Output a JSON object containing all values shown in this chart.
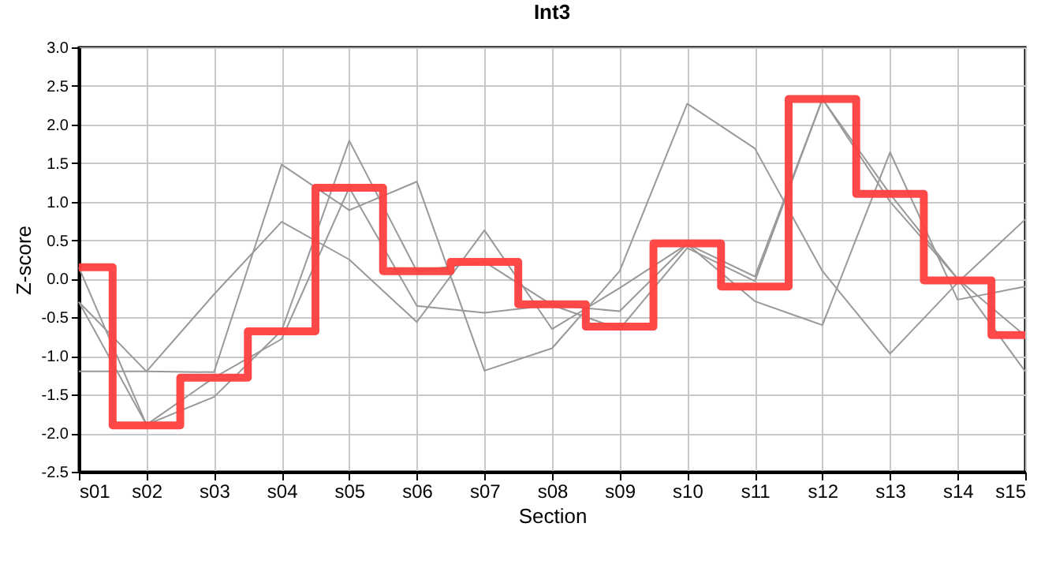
{
  "chart_data": {
    "type": "line",
    "title": "Int3",
    "xlabel": "Section",
    "ylabel": "Z-score",
    "categories": [
      "s01",
      "s02",
      "s03",
      "s04",
      "s05",
      "s06",
      "s07",
      "s08",
      "s09",
      "s10",
      "s11",
      "s12",
      "s13",
      "s14",
      "s15"
    ],
    "ylim": [
      -2.5,
      3.0
    ],
    "yticks": [
      {
        "value": -2.5,
        "label": "-2.5"
      },
      {
        "value": -2,
        "label": "-2.0"
      },
      {
        "value": -1.5,
        "label": "-1.5"
      },
      {
        "value": -1,
        "label": "-1.0"
      },
      {
        "value": -0.5,
        "label": "-0.5"
      },
      {
        "value": 0,
        "label": "0.0"
      },
      {
        "value": 0.5,
        "label": "0.5"
      },
      {
        "value": 1,
        "label": "1.0"
      },
      {
        "value": 1.5,
        "label": "1.5"
      },
      {
        "value": 2,
        "label": "2.0"
      },
      {
        "value": 2.5,
        "label": "2.5"
      },
      {
        "value": 3,
        "label": "3.0"
      }
    ],
    "grid": true,
    "line_style": "solid",
    "marker": "none",
    "series": [
      {
        "color": "#999999",
        "values": [
          -1.2,
          -1.2,
          -1.21,
          1.48,
          0.89,
          1.26,
          -1.19,
          -0.9,
          0.1,
          2.27,
          1.69,
          0.1,
          -0.97,
          -0.05,
          0.77
        ]
      },
      {
        "color": "#999999",
        "values": [
          -0.3,
          -1.2,
          -0.2,
          0.74,
          0.25,
          -0.56,
          0.63,
          -0.65,
          -0.12,
          0.45,
          -0.29,
          -0.6,
          1.64,
          -0.27,
          -0.1
        ]
      },
      {
        "color": "#999999",
        "values": [
          0.15,
          -1.89,
          -1.53,
          -0.67,
          1.79,
          0.1,
          0.22,
          -0.34,
          -0.42,
          0.45,
          0.03,
          2.33,
          1.1,
          0.0,
          -0.74
        ]
      },
      {
        "color": "#999999",
        "values": [
          -0.3,
          -1.89,
          -1.28,
          -0.78,
          1.18,
          -0.35,
          -0.44,
          -0.34,
          -0.65,
          0.4,
          -0.03,
          2.33,
          1.0,
          0.0,
          -1.2
        ]
      },
      {
        "type": "step",
        "color": "#ff3f3f",
        "values": [
          0.15,
          -1.9,
          -1.28,
          -0.68,
          1.18,
          0.1,
          0.22,
          -0.33,
          -0.62,
          0.46,
          -0.1,
          2.33,
          1.1,
          -0.02,
          -0.73
        ]
      }
    ]
  }
}
